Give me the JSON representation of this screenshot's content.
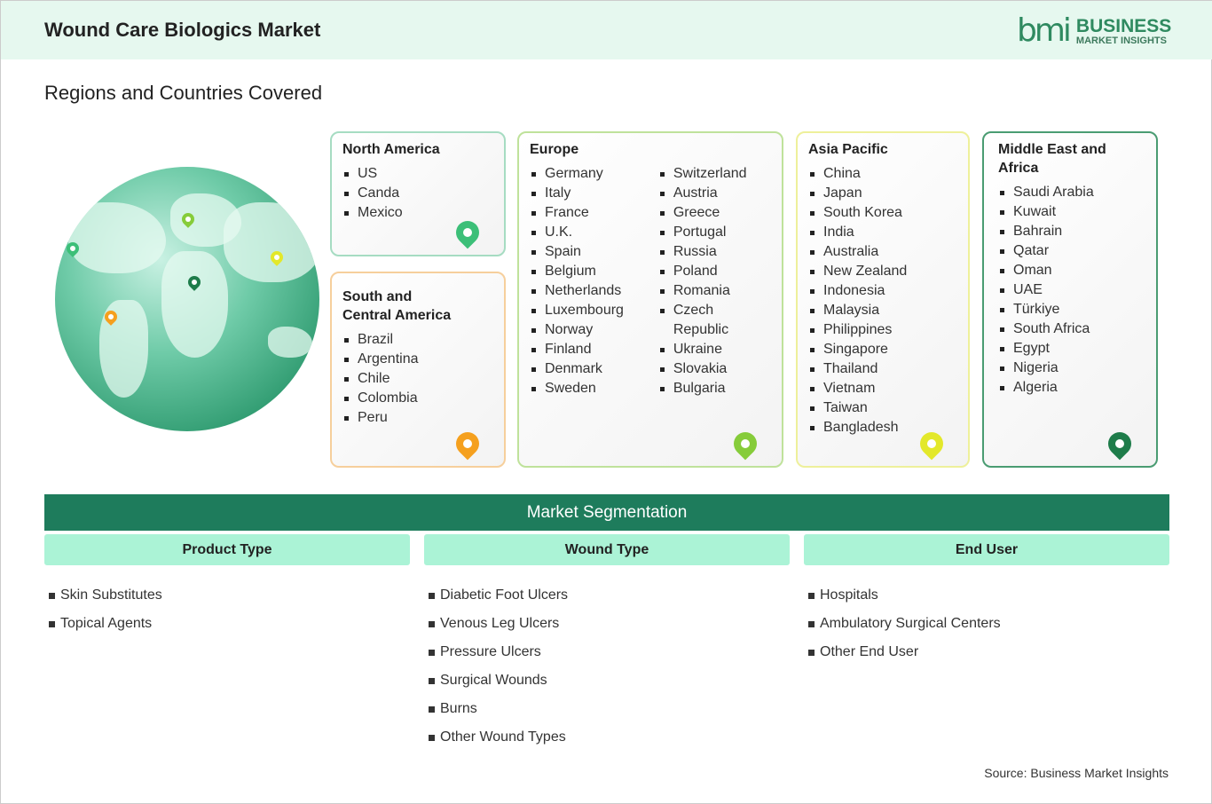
{
  "header": {
    "title": "Wound Care Biologics Market",
    "logo_mark": "bmi",
    "logo_line1": "BUSINESS",
    "logo_line2": "MARKET INSIGHTS"
  },
  "subtitle": "Regions and Countries Covered",
  "regions": {
    "north_america": {
      "name": "North America",
      "countries": [
        "US",
        "Canda",
        "Mexico"
      ],
      "color": "#3cbf78"
    },
    "south_america": {
      "name_line1": "South and",
      "name_line2": "Central America",
      "countries": [
        "Brazil",
        "Argentina",
        "Chile",
        "Colombia",
        "Peru"
      ],
      "color": "#f5a01e"
    },
    "europe": {
      "name": "Europe",
      "col1": [
        "Germany",
        "Italy",
        "France",
        "U.K.",
        "Spain",
        "Belgium",
        "Netherlands",
        "Luxembourg",
        "Norway",
        "Finland",
        "Denmark",
        "Sweden"
      ],
      "col2": [
        "Switzerland",
        "Austria",
        "Greece",
        "Portugal",
        "Russia",
        "Poland",
        "Romania",
        "Czech Republic",
        "Ukraine",
        "Slovakia",
        "Bulgaria"
      ],
      "color": "#86cc3a"
    },
    "asia_pacific": {
      "name": "Asia Pacific",
      "countries": [
        "China",
        "Japan",
        "South Korea",
        "India",
        "Australia",
        "New Zealand",
        "Indonesia",
        "Malaysia",
        "Philippines",
        "Singapore",
        "Thailand",
        "Vietnam",
        "Taiwan",
        "Bangladesh"
      ],
      "color": "#e3e82a"
    },
    "mea": {
      "name": "Middle East and Africa",
      "countries": [
        "Saudi Arabia",
        "Kuwait",
        "Bahrain",
        "Qatar",
        "Oman",
        "UAE",
        "Türkiye",
        "South Africa",
        "Egypt",
        "Nigeria",
        "Algeria"
      ],
      "color": "#1e7c4a"
    }
  },
  "segmentation": {
    "title": "Market Segmentation",
    "groups": [
      {
        "title": "Product Type",
        "items": [
          "Skin Substitutes",
          "Topical Agents"
        ]
      },
      {
        "title": "Wound Type",
        "items": [
          "Diabetic Foot Ulcers",
          "Venous Leg Ulcers",
          "Pressure Ulcers",
          "Surgical Wounds",
          "Burns",
          "Other Wound Types"
        ]
      },
      {
        "title": "End User",
        "items": [
          "Hospitals",
          "Ambulatory Surgical Centers",
          "Other End User"
        ]
      }
    ]
  },
  "source": "Source: Business Market Insights"
}
